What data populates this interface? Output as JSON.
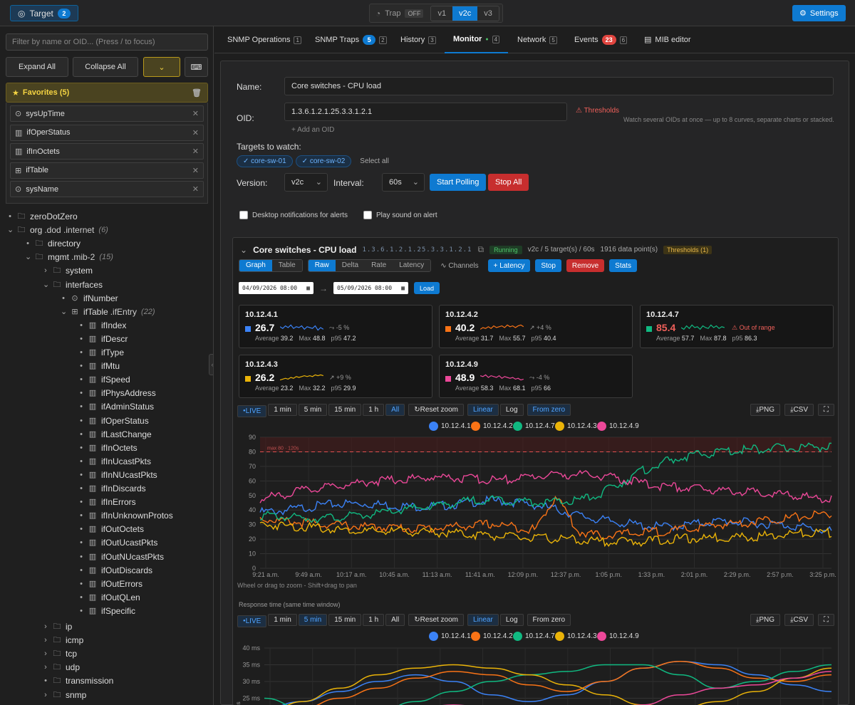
{
  "topbar": {
    "target_label": "Target",
    "target_count": "2",
    "trap_label": "Trap",
    "trap_state": "OFF",
    "versions": [
      "v1",
      "v2c",
      "v3"
    ],
    "active_version": "v2c",
    "settings_label": "Settings"
  },
  "sidebar": {
    "filter_placeholder": "Filter by name or OID... (Press / to focus)",
    "expand_all": "Expand All",
    "collapse_all": "Collapse All",
    "favorites_title": "Favorites (5)",
    "favorites": [
      {
        "label": "sysUpTime",
        "icon": "scalar-icon"
      },
      {
        "label": "ifOperStatus",
        "icon": "column-icon"
      },
      {
        "label": "ifInOctets",
        "icon": "column-icon"
      },
      {
        "label": "ifTable",
        "icon": "table-icon"
      },
      {
        "label": "sysName",
        "icon": "scalar-icon"
      }
    ],
    "tree": [
      {
        "label": "zeroDotZero",
        "suffix": "",
        "count": "",
        "indent": 0,
        "toggle": "dot",
        "icon": "folder"
      },
      {
        "label": "org",
        "suffix": ".dod .internet",
        "count": "(6)",
        "indent": 0,
        "toggle": "open",
        "icon": "folder"
      },
      {
        "label": "directory",
        "suffix": "",
        "count": "",
        "indent": 1,
        "toggle": "dot",
        "icon": "folder"
      },
      {
        "label": "mgmt",
        "suffix": ".mib-2",
        "count": "(15)",
        "indent": 1,
        "toggle": "open",
        "icon": "folder"
      },
      {
        "label": "system",
        "suffix": "",
        "count": "",
        "indent": 2,
        "toggle": "closed",
        "icon": "folder"
      },
      {
        "label": "interfaces",
        "suffix": "",
        "count": "",
        "indent": 2,
        "toggle": "open",
        "icon": "folder"
      },
      {
        "label": "ifNumber",
        "suffix": "",
        "count": "",
        "indent": 3,
        "toggle": "dot",
        "icon": "scalar"
      },
      {
        "label": "ifTable",
        "suffix": ".ifEntry",
        "count": "(22)",
        "indent": 3,
        "toggle": "open",
        "icon": "table"
      },
      {
        "label": "ifIndex",
        "suffix": "",
        "count": "",
        "indent": 4,
        "toggle": "dot",
        "icon": "column"
      },
      {
        "label": "ifDescr",
        "suffix": "",
        "count": "",
        "indent": 4,
        "toggle": "dot",
        "icon": "column"
      },
      {
        "label": "ifType",
        "suffix": "",
        "count": "",
        "indent": 4,
        "toggle": "dot",
        "icon": "column"
      },
      {
        "label": "ifMtu",
        "suffix": "",
        "count": "",
        "indent": 4,
        "toggle": "dot",
        "icon": "column"
      },
      {
        "label": "ifSpeed",
        "suffix": "",
        "count": "",
        "indent": 4,
        "toggle": "dot",
        "icon": "column"
      },
      {
        "label": "ifPhysAddress",
        "suffix": "",
        "count": "",
        "indent": 4,
        "toggle": "dot",
        "icon": "column"
      },
      {
        "label": "ifAdminStatus",
        "suffix": "",
        "count": "",
        "indent": 4,
        "toggle": "dot",
        "icon": "column"
      },
      {
        "label": "ifOperStatus",
        "suffix": "",
        "count": "",
        "indent": 4,
        "toggle": "dot",
        "icon": "column"
      },
      {
        "label": "ifLastChange",
        "suffix": "",
        "count": "",
        "indent": 4,
        "toggle": "dot",
        "icon": "column"
      },
      {
        "label": "ifInOctets",
        "suffix": "",
        "count": "",
        "indent": 4,
        "toggle": "dot",
        "icon": "column"
      },
      {
        "label": "ifInUcastPkts",
        "suffix": "",
        "count": "",
        "indent": 4,
        "toggle": "dot",
        "icon": "column"
      },
      {
        "label": "ifInNUcastPkts",
        "suffix": "",
        "count": "",
        "indent": 4,
        "toggle": "dot",
        "icon": "column"
      },
      {
        "label": "ifInDiscards",
        "suffix": "",
        "count": "",
        "indent": 4,
        "toggle": "dot",
        "icon": "column"
      },
      {
        "label": "ifInErrors",
        "suffix": "",
        "count": "",
        "indent": 4,
        "toggle": "dot",
        "icon": "column"
      },
      {
        "label": "ifInUnknownProtos",
        "suffix": "",
        "count": "",
        "indent": 4,
        "toggle": "dot",
        "icon": "column"
      },
      {
        "label": "ifOutOctets",
        "suffix": "",
        "count": "",
        "indent": 4,
        "toggle": "dot",
        "icon": "column"
      },
      {
        "label": "ifOutUcastPkts",
        "suffix": "",
        "count": "",
        "indent": 4,
        "toggle": "dot",
        "icon": "column"
      },
      {
        "label": "ifOutNUcastPkts",
        "suffix": "",
        "count": "",
        "indent": 4,
        "toggle": "dot",
        "icon": "column"
      },
      {
        "label": "ifOutDiscards",
        "suffix": "",
        "count": "",
        "indent": 4,
        "toggle": "dot",
        "icon": "column"
      },
      {
        "label": "ifOutErrors",
        "suffix": "",
        "count": "",
        "indent": 4,
        "toggle": "dot",
        "icon": "column"
      },
      {
        "label": "ifOutQLen",
        "suffix": "",
        "count": "",
        "indent": 4,
        "toggle": "dot",
        "icon": "column"
      },
      {
        "label": "ifSpecific",
        "suffix": "",
        "count": "",
        "indent": 4,
        "toggle": "dot",
        "icon": "column"
      },
      {
        "label": "ip",
        "suffix": "",
        "count": "",
        "indent": 2,
        "toggle": "closed",
        "icon": "folder",
        "gap": true
      },
      {
        "label": "icmp",
        "suffix": "",
        "count": "",
        "indent": 2,
        "toggle": "closed",
        "icon": "folder"
      },
      {
        "label": "tcp",
        "suffix": "",
        "count": "",
        "indent": 2,
        "toggle": "closed",
        "icon": "folder"
      },
      {
        "label": "udp",
        "suffix": "",
        "count": "",
        "indent": 2,
        "toggle": "closed",
        "icon": "folder"
      },
      {
        "label": "transmission",
        "suffix": "",
        "count": "",
        "indent": 2,
        "toggle": "dot",
        "icon": "folder"
      },
      {
        "label": "snmp",
        "suffix": "",
        "count": "",
        "indent": 2,
        "toggle": "closed",
        "icon": "folder"
      }
    ]
  },
  "tabs": [
    {
      "label": "SNMP Operations",
      "key": "1",
      "badge": ""
    },
    {
      "label": "SNMP Traps",
      "key": "2",
      "badge": "5"
    },
    {
      "label": "History",
      "key": "3",
      "badge": ""
    },
    {
      "label": "Monitor",
      "key": "4",
      "badge": "",
      "active": true
    },
    {
      "label": "Network",
      "key": "5",
      "badge": ""
    },
    {
      "label": "Events",
      "key": "6",
      "badge": "23"
    },
    {
      "label": "MIB editor",
      "key": "",
      "badge": ""
    }
  ],
  "monitor_form": {
    "name_label": "Name:",
    "name_value": "Core switches - CPU load",
    "oid_label": "OID:",
    "oid_value": "1.3.6.1.2.1.25.3.3.1.2.1",
    "thresholds_label": "Thresholds",
    "oid_hint": "Watch several OIDs at once — up to 8 curves, separate charts or stacked.",
    "add_oid_label": "+ Add an OID",
    "targets_label": "Targets to watch:",
    "targets": [
      "core-sw-01",
      "core-sw-02"
    ],
    "select_all": "Select all",
    "version_label": "Version:",
    "version_value": "v2c",
    "interval_label": "Interval:",
    "interval_value": "60s",
    "start_polling": "Start Polling",
    "stop_all": "Stop All",
    "desktop_notify": "Desktop notifications for alerts",
    "play_sound": "Play sound on alert"
  },
  "monitor": {
    "title": "Core switches - CPU load",
    "oid": "1.3.6.1.2.1.25.3.3.1.2.1",
    "status": "Running",
    "summary": "v2c / 5 target(s) / 60s",
    "points": "1916 data point(s)",
    "thresholds": "Thresholds (1)",
    "views": [
      "Graph",
      "Table"
    ],
    "modes": [
      "Raw",
      "Delta",
      "Rate",
      "Latency"
    ],
    "channels": "Channels",
    "add_latency": "+ Latency",
    "stop": "Stop",
    "remove": "Remove",
    "stats": "Stats",
    "date_from": "04/09/2026 08:00",
    "date_to": "05/09/2026 08:00",
    "load": "Load",
    "cards": [
      {
        "ip": "10.12.4.1",
        "value": "26.7",
        "trend": "-5 %",
        "avg": "39.2",
        "max": "48.8",
        "p95": "47.2",
        "color": "#3b82f6",
        "alert": ""
      },
      {
        "ip": "10.12.4.2",
        "value": "40.2",
        "trend": "+4 %",
        "avg": "31.7",
        "max": "55.7",
        "p95": "40.4",
        "color": "#f97316",
        "alert": ""
      },
      {
        "ip": "10.12.4.7",
        "value": "85.4",
        "trend": "",
        "avg": "57.7",
        "max": "87.8",
        "p95": "86.3",
        "color": "#10b981",
        "alert": "Out of range"
      },
      {
        "ip": "10.12.4.3",
        "value": "26.2",
        "trend": "+9 %",
        "avg": "23.2",
        "max": "32.2",
        "p95": "29.9",
        "color": "#eab308",
        "alert": ""
      },
      {
        "ip": "10.12.4.9",
        "value": "48.9",
        "trend": "-4 %",
        "avg": "58.3",
        "max": "68.1",
        "p95": "66",
        "color": "#ec4899",
        "alert": ""
      }
    ],
    "stat_labels": {
      "avg": "Average",
      "max": "Max",
      "p95": "p95"
    },
    "chart_controls": {
      "live": "LIVE",
      "ranges": [
        "1 min",
        "5 min",
        "15 min",
        "1 h",
        "All"
      ],
      "reset_zoom": "Reset zoom",
      "scales": [
        "Linear",
        "Log"
      ],
      "from_zero": "From zero",
      "png": "PNG",
      "csv": "CSV"
    },
    "zoom_hint": "Wheel or drag to zoom - Shift+drag to pan",
    "threshold_label": "max 80 · 120s",
    "response_title": "Response time (same time window)"
  },
  "chart_data": [
    {
      "type": "line",
      "title": "",
      "ylim": [
        0,
        90
      ],
      "yticks": [
        0,
        10,
        20,
        30,
        40,
        50,
        60,
        70,
        80,
        90
      ],
      "x_ticks": [
        "9:21 a.m.",
        "9:49 a.m.",
        "10:17 a.m.",
        "10:45 a.m.",
        "11:13 a.m.",
        "11:41 a.m.",
        "12:09 p.m.",
        "12:37 p.m.",
        "1:05 p.m.",
        "1:33 p.m.",
        "2:01 p.m.",
        "2:29 p.m.",
        "2:57 p.m.",
        "3:25 p.m."
      ],
      "threshold": 80,
      "series": [
        {
          "name": "10.12.4.1",
          "color": "#3b82f6",
          "values": [
            40,
            41,
            43,
            45,
            46,
            46,
            45,
            44,
            44,
            45,
            47,
            48,
            47,
            45,
            42,
            38,
            35,
            33,
            31,
            30,
            31,
            33,
            34,
            33,
            32,
            31,
            29,
            27
          ]
        },
        {
          "name": "10.12.4.2",
          "color": "#f97316",
          "values": [
            36,
            34,
            33,
            32,
            31,
            30,
            30,
            29,
            29,
            30,
            31,
            32,
            30,
            28,
            52,
            27,
            24,
            25,
            26,
            27,
            28,
            30,
            32,
            33,
            35,
            36,
            38,
            39
          ]
        },
        {
          "name": "10.12.4.7",
          "color": "#10b981",
          "values": [
            38,
            37,
            36,
            36,
            37,
            38,
            40,
            42,
            44,
            46,
            48,
            49,
            48,
            47,
            47,
            48,
            52,
            60,
            68,
            74,
            78,
            80,
            82,
            83,
            84,
            84,
            85,
            85
          ]
        },
        {
          "name": "10.12.4.3",
          "color": "#eab308",
          "values": [
            32,
            31,
            30,
            29,
            28,
            27,
            27,
            27,
            26,
            26,
            25,
            24,
            23,
            22,
            22,
            21,
            20,
            20,
            20,
            21,
            22,
            22,
            23,
            23,
            24,
            25,
            26,
            26
          ]
        },
        {
          "name": "10.12.4.9",
          "color": "#ec4899",
          "values": [
            49,
            52,
            55,
            57,
            59,
            61,
            62,
            63,
            64,
            64,
            63,
            62,
            63,
            65,
            66,
            66,
            65,
            63,
            60,
            58,
            57,
            56,
            55,
            54,
            53,
            52,
            50,
            49
          ]
        }
      ]
    },
    {
      "type": "line",
      "title": "Response time (same time window)",
      "ylim": [
        20,
        40
      ],
      "yticks": [
        "25 ms",
        "30 ms",
        "35 ms",
        "40 ms"
      ],
      "ytick_values": [
        25,
        30,
        35,
        40
      ],
      "series": [
        {
          "name": "10.12.4.1",
          "color": "#3b82f6",
          "values": [
            22,
            24,
            27,
            30,
            32,
            30,
            26,
            24,
            26,
            30,
            34,
            36,
            35,
            32,
            29,
            27
          ]
        },
        {
          "name": "10.12.4.2",
          "color": "#f97316",
          "values": [
            20,
            22,
            25,
            28,
            31,
            33,
            32,
            29,
            27,
            30,
            34,
            36,
            34,
            31,
            30,
            32
          ]
        },
        {
          "name": "10.12.4.7",
          "color": "#10b981",
          "values": [
            25,
            22,
            20,
            21,
            24,
            27,
            30,
            32,
            33,
            35,
            35,
            32,
            28,
            30,
            33,
            35
          ]
        },
        {
          "name": "10.12.4.3",
          "color": "#eab308",
          "values": [
            20,
            24,
            28,
            32,
            34,
            35,
            34,
            32,
            29,
            26,
            23,
            22,
            24,
            27,
            31,
            34
          ]
        },
        {
          "name": "10.12.4.9",
          "color": "#ec4899",
          "values": [
            20,
            20,
            21,
            22,
            22,
            23,
            22,
            21,
            20,
            21,
            23,
            26,
            28,
            29,
            31,
            33
          ]
        }
      ]
    }
  ]
}
